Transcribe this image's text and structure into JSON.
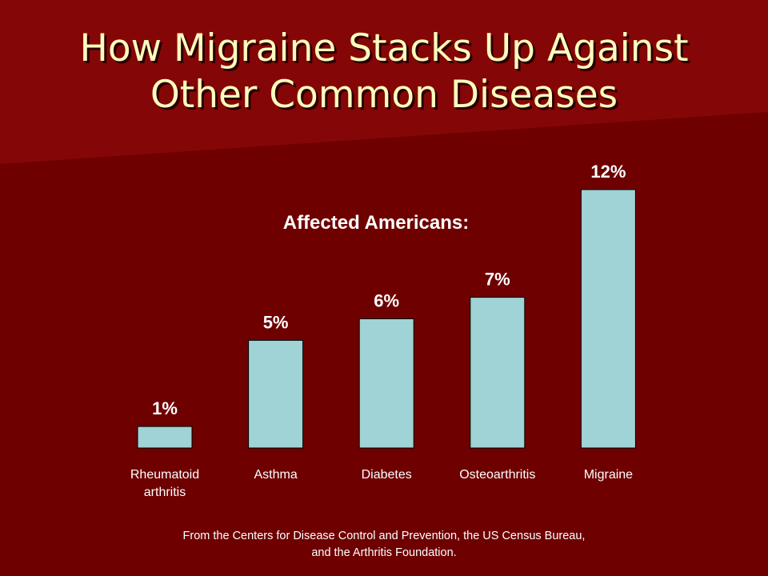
{
  "slide": {
    "title_line1": "How Migraine Stacks Up Against",
    "title_line2": "Other Common Diseases",
    "source_line1": "From the Centers for Disease Control and Prevention, the US Census Bureau,",
    "source_line2": "and the Arthritis Foundation.",
    "colors": {
      "background": "#6e0000",
      "background_light": "#8c0a0a",
      "title": "#fdfcbe",
      "bar_fill": "#9fd3d6",
      "text": "#ffffff"
    }
  },
  "chart_data": {
    "type": "bar",
    "title": "Affected Americans:",
    "categories": [
      [
        "Rheumatoid",
        "arthritis"
      ],
      [
        "Asthma"
      ],
      [
        "Diabetes"
      ],
      [
        "Osteoarthritis"
      ],
      [
        "Migraine"
      ]
    ],
    "values": [
      1,
      5,
      6,
      7,
      12
    ],
    "value_labels": [
      "1%",
      "5%",
      "6%",
      "7%",
      "12%"
    ],
    "unit": "%",
    "ylim": [
      0,
      12
    ],
    "grid": false,
    "legend": "none",
    "axes_visible": false
  }
}
